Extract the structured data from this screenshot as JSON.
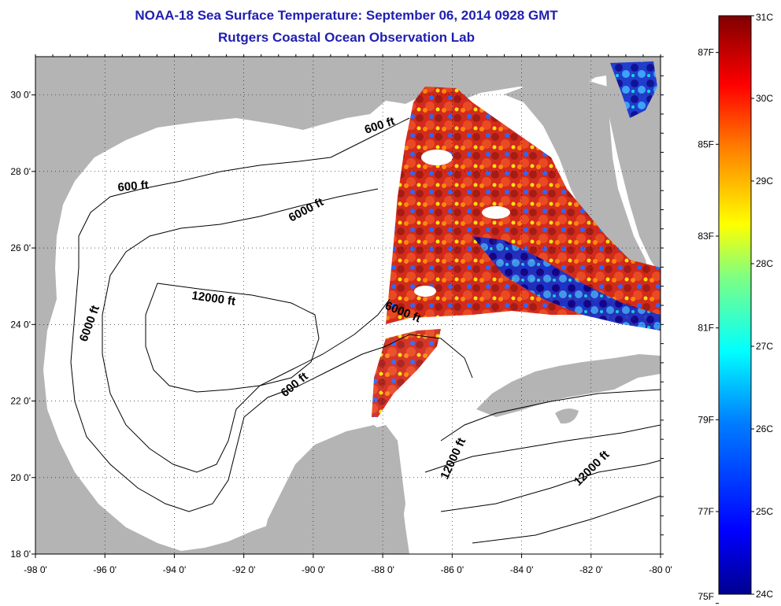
{
  "title": "NOAA-18 Sea Surface Temperature:  September 06, 2014 0928 GMT",
  "subtitle": "Rutgers Coastal Ocean Observation Lab",
  "map": {
    "lon_ticks": [
      "-98 0'",
      "-96 0'",
      "-94 0'",
      "-92 0'",
      "-90 0'",
      "-88 0'",
      "-86 0'",
      "-84 0'",
      "-82 0'",
      "-80 0'"
    ],
    "lat_ticks": [
      "30 0'",
      "28 0'",
      "26 0'",
      "24 0'",
      "22 0'",
      "20 0'",
      "18 0'"
    ],
    "lon_range": [
      -98,
      -80
    ],
    "lat_range": [
      18,
      31
    ],
    "grid": "dotted",
    "land_color": "#b4b4b4",
    "water_color": "#ffffff",
    "contour_labels": [
      "600 ft",
      "600 ft",
      "6000 ft",
      "12000 ft",
      "6000 ft",
      "6000 ft",
      "600 ft",
      "12000 ft",
      "12000 ft"
    ]
  },
  "colorbar": {
    "celsius_labels": [
      "31C",
      "30C",
      "29C",
      "28C",
      "27C",
      "26C",
      "25C",
      "24C"
    ],
    "fahrenheit_labels": [
      "87F",
      "85F",
      "83F",
      "81F",
      "79F",
      "77F",
      "75F"
    ],
    "colors": [
      "#00008f",
      "#0000ff",
      "#0080ff",
      "#00ffff",
      "#80ff80",
      "#ffff00",
      "#ff8000",
      "#ff0000",
      "#800000"
    ]
  }
}
